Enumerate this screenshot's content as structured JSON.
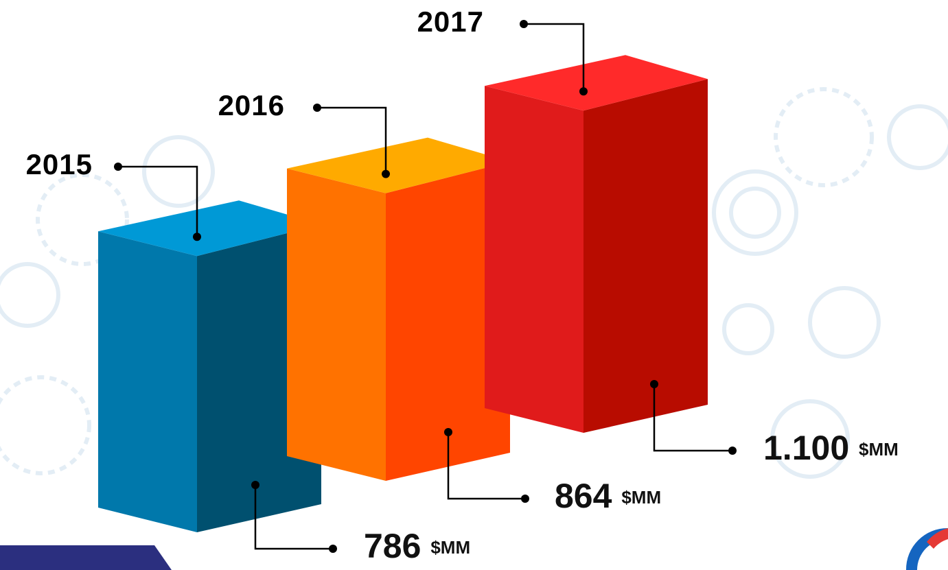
{
  "chart_data": {
    "type": "bar3d",
    "categories": [
      "2015",
      "2016",
      "2017"
    ],
    "values": [
      786,
      864,
      1100
    ],
    "value_labels": [
      "786",
      "864",
      "1.100"
    ],
    "unit": "$MM",
    "colors": [
      {
        "front": "#0078ab",
        "side": "#00506f",
        "top": "#0099d6"
      },
      {
        "front": "#ff7200",
        "side": "#ff4500",
        "top": "#ffaa00"
      },
      {
        "front": "#e01b1b",
        "side": "#b80c00",
        "top": "#ff2a2a"
      }
    ]
  }
}
